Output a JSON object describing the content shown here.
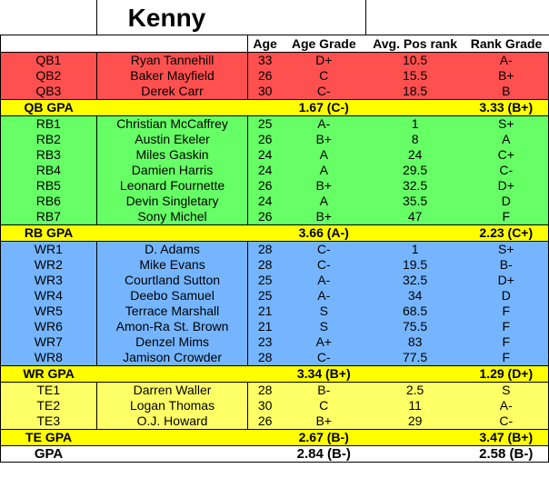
{
  "title": "Kenny",
  "headers": [
    "",
    "",
    "Age",
    "Age Grade",
    "Avg. Pos rank",
    "Rank Grade"
  ],
  "groups": [
    {
      "key": "qb",
      "rows": [
        [
          "QB1",
          "Ryan Tannehill",
          "33",
          "D+",
          "10.5",
          "A-"
        ],
        [
          "QB2",
          "Baker Mayfield",
          "26",
          "C",
          "15.5",
          "B+"
        ],
        [
          "QB3",
          "Derek Carr",
          "30",
          "C-",
          "18.5",
          "B"
        ]
      ],
      "gpa": {
        "label": "QB GPA",
        "age_gpa": "1.67 (C-)",
        "rank_gpa": "3.33 (B+)"
      }
    },
    {
      "key": "rb",
      "rows": [
        [
          "RB1",
          "Christian McCaffrey",
          "25",
          "A-",
          "1",
          "S+"
        ],
        [
          "RB2",
          "Austin Ekeler",
          "26",
          "B+",
          "8",
          "A"
        ],
        [
          "RB3",
          "Miles Gaskin",
          "24",
          "A",
          "24",
          "C+"
        ],
        [
          "RB4",
          "Damien Harris",
          "24",
          "A",
          "29.5",
          "C-"
        ],
        [
          "RB5",
          "Leonard Fournette",
          "26",
          "B+",
          "32.5",
          "D+"
        ],
        [
          "RB6",
          "Devin Singletary",
          "24",
          "A",
          "35.5",
          "D"
        ],
        [
          "RB7",
          "Sony Michel",
          "26",
          "B+",
          "47",
          "F"
        ]
      ],
      "gpa": {
        "label": "RB GPA",
        "age_gpa": "3.66 (A-)",
        "rank_gpa": "2.23 (C+)"
      }
    },
    {
      "key": "wr",
      "rows": [
        [
          "WR1",
          "D. Adams",
          "28",
          "C-",
          "1",
          "S+"
        ],
        [
          "WR2",
          "Mike Evans",
          "28",
          "C-",
          "19.5",
          "B-"
        ],
        [
          "WR3",
          "Courtland Sutton",
          "25",
          "A-",
          "32.5",
          "D+"
        ],
        [
          "WR4",
          "Deebo Samuel",
          "25",
          "A-",
          "34",
          "D"
        ],
        [
          "WR5",
          "Terrace Marshall",
          "21",
          "S",
          "68.5",
          "F"
        ],
        [
          "WR6",
          "Amon-Ra St. Brown",
          "21",
          "S",
          "75.5",
          "F"
        ],
        [
          "WR7",
          "Denzel Mims",
          "23",
          "A+",
          "83",
          "F"
        ],
        [
          "WR8",
          "Jamison Crowder",
          "28",
          "C-",
          "77.5",
          "F"
        ]
      ],
      "gpa": {
        "label": "WR GPA",
        "age_gpa": "3.34 (B+)",
        "rank_gpa": "1.29 (D+)"
      }
    },
    {
      "key": "te",
      "rows": [
        [
          "TE1",
          "Darren Waller",
          "28",
          "B-",
          "2.5",
          "S"
        ],
        [
          "TE2",
          "Logan Thomas",
          "30",
          "C",
          "11",
          "A-"
        ],
        [
          "TE3",
          "O.J. Howard",
          "26",
          "B+",
          "29",
          "C-"
        ]
      ],
      "gpa": {
        "label": "TE GPA",
        "age_gpa": "2.67 (B-)",
        "rank_gpa": "3.47 (B+)"
      }
    }
  ],
  "total": {
    "label": "GPA",
    "age_gpa": "2.84 (B-)",
    "rank_gpa": "2.58 (B-)"
  },
  "colors": {
    "qb": "#ff5050",
    "rb": "#66ff66",
    "wr": "#75b5ff",
    "te": "#ffff66",
    "gpa_row": "#ffff00"
  }
}
